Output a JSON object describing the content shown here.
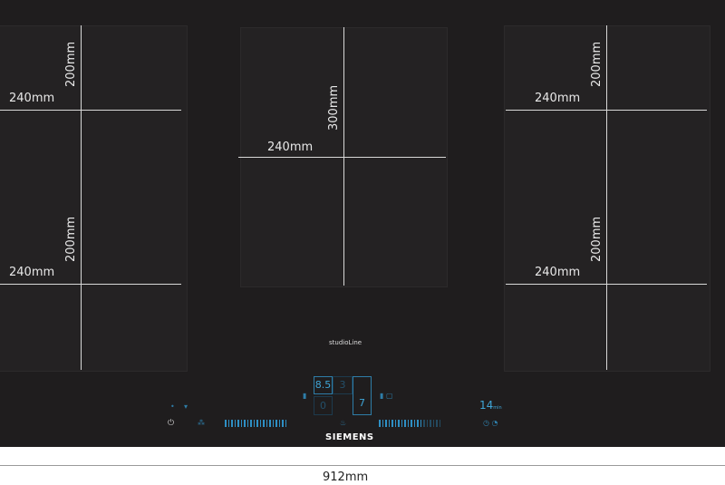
{
  "product": {
    "series": "studioLine",
    "brand": "SIEMENS",
    "total_width": "912mm"
  },
  "zones": {
    "left": {
      "top_depth": "200mm",
      "top_width": "240mm",
      "bottom_depth": "200mm",
      "bottom_width": "240mm"
    },
    "center": {
      "depth": "300mm",
      "width": "240mm"
    },
    "right": {
      "top_depth": "200mm",
      "top_width": "240mm",
      "bottom_depth": "200mm",
      "bottom_width": "240mm"
    }
  },
  "controls": {
    "power_level_display": "8.5",
    "display_2": "3",
    "display_3": "7",
    "display_4": "0",
    "timer": "14",
    "timer_unit": "min",
    "power_icon": "power-icon",
    "accent_color": "#2e8fc4"
  }
}
